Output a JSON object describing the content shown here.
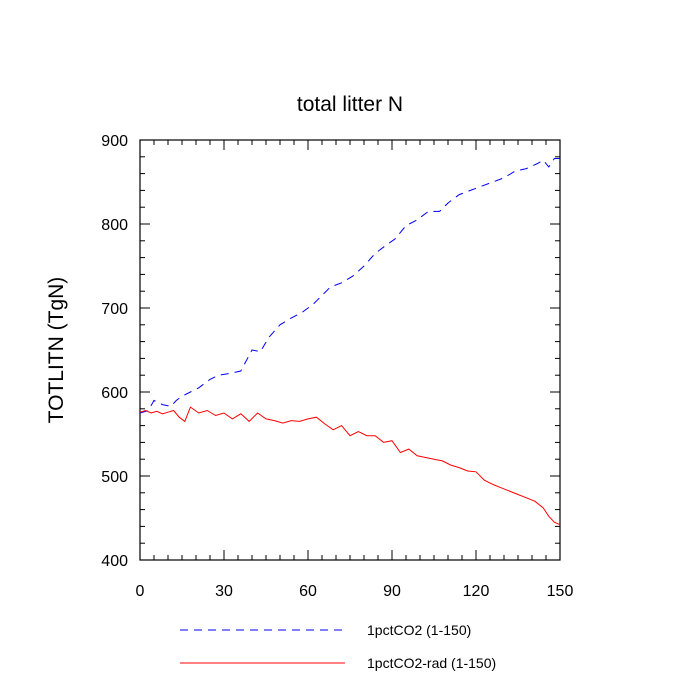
{
  "chart_data": {
    "type": "line",
    "title": "total litter N",
    "xlabel": "",
    "ylabel": "TOTLITN  (TgN)",
    "xlim": [
      0,
      150
    ],
    "ylim": [
      400,
      900
    ],
    "xticks": [
      0,
      30,
      60,
      90,
      120,
      150
    ],
    "yticks": [
      400,
      500,
      600,
      700,
      800,
      900
    ],
    "legend_position": "bottom",
    "series": [
      {
        "name": "1pctCO2 (1-150)",
        "color": "#0000ff",
        "style": "dashed",
        "x": [
          0,
          3,
          5,
          8,
          11,
          13,
          15,
          18,
          21,
          25,
          28,
          32,
          36,
          40,
          43,
          46,
          50,
          54,
          58,
          62,
          65,
          68,
          72,
          76,
          80,
          84,
          88,
          91,
          95,
          99,
          103,
          107,
          110,
          114,
          118,
          122,
          126,
          130,
          134,
          138,
          142,
          144,
          146,
          148,
          150
        ],
        "values": [
          575,
          578,
          590,
          585,
          583,
          590,
          595,
          600,
          605,
          615,
          620,
          622,
          625,
          650,
          648,
          665,
          680,
          688,
          695,
          705,
          715,
          725,
          730,
          738,
          750,
          765,
          775,
          782,
          798,
          805,
          815,
          815,
          825,
          835,
          840,
          845,
          850,
          855,
          863,
          866,
          872,
          876,
          868,
          878,
          878
        ]
      },
      {
        "name": "1pctCO2-rad (1-150)",
        "color": "#ff0000",
        "style": "solid",
        "x": [
          0,
          2,
          4,
          6,
          8,
          10,
          12,
          14,
          16,
          18,
          21,
          24,
          27,
          30,
          33,
          36,
          39,
          42,
          45,
          48,
          51,
          54,
          57,
          60,
          63,
          66,
          69,
          72,
          75,
          78,
          81,
          84,
          87,
          90,
          93,
          96,
          99,
          102,
          105,
          108,
          111,
          114,
          117,
          120,
          123,
          126,
          129,
          132,
          135,
          138,
          141,
          144,
          146,
          148,
          150
        ],
        "values": [
          576,
          578,
          575,
          577,
          574,
          576,
          578,
          570,
          565,
          582,
          575,
          578,
          572,
          575,
          568,
          574,
          565,
          575,
          568,
          566,
          563,
          566,
          565,
          568,
          570,
          562,
          555,
          560,
          548,
          553,
          548,
          548,
          540,
          542,
          528,
          532,
          524,
          522,
          520,
          518,
          513,
          510,
          506,
          505,
          495,
          490,
          486,
          482,
          478,
          474,
          470,
          462,
          452,
          445,
          442
        ]
      }
    ]
  }
}
